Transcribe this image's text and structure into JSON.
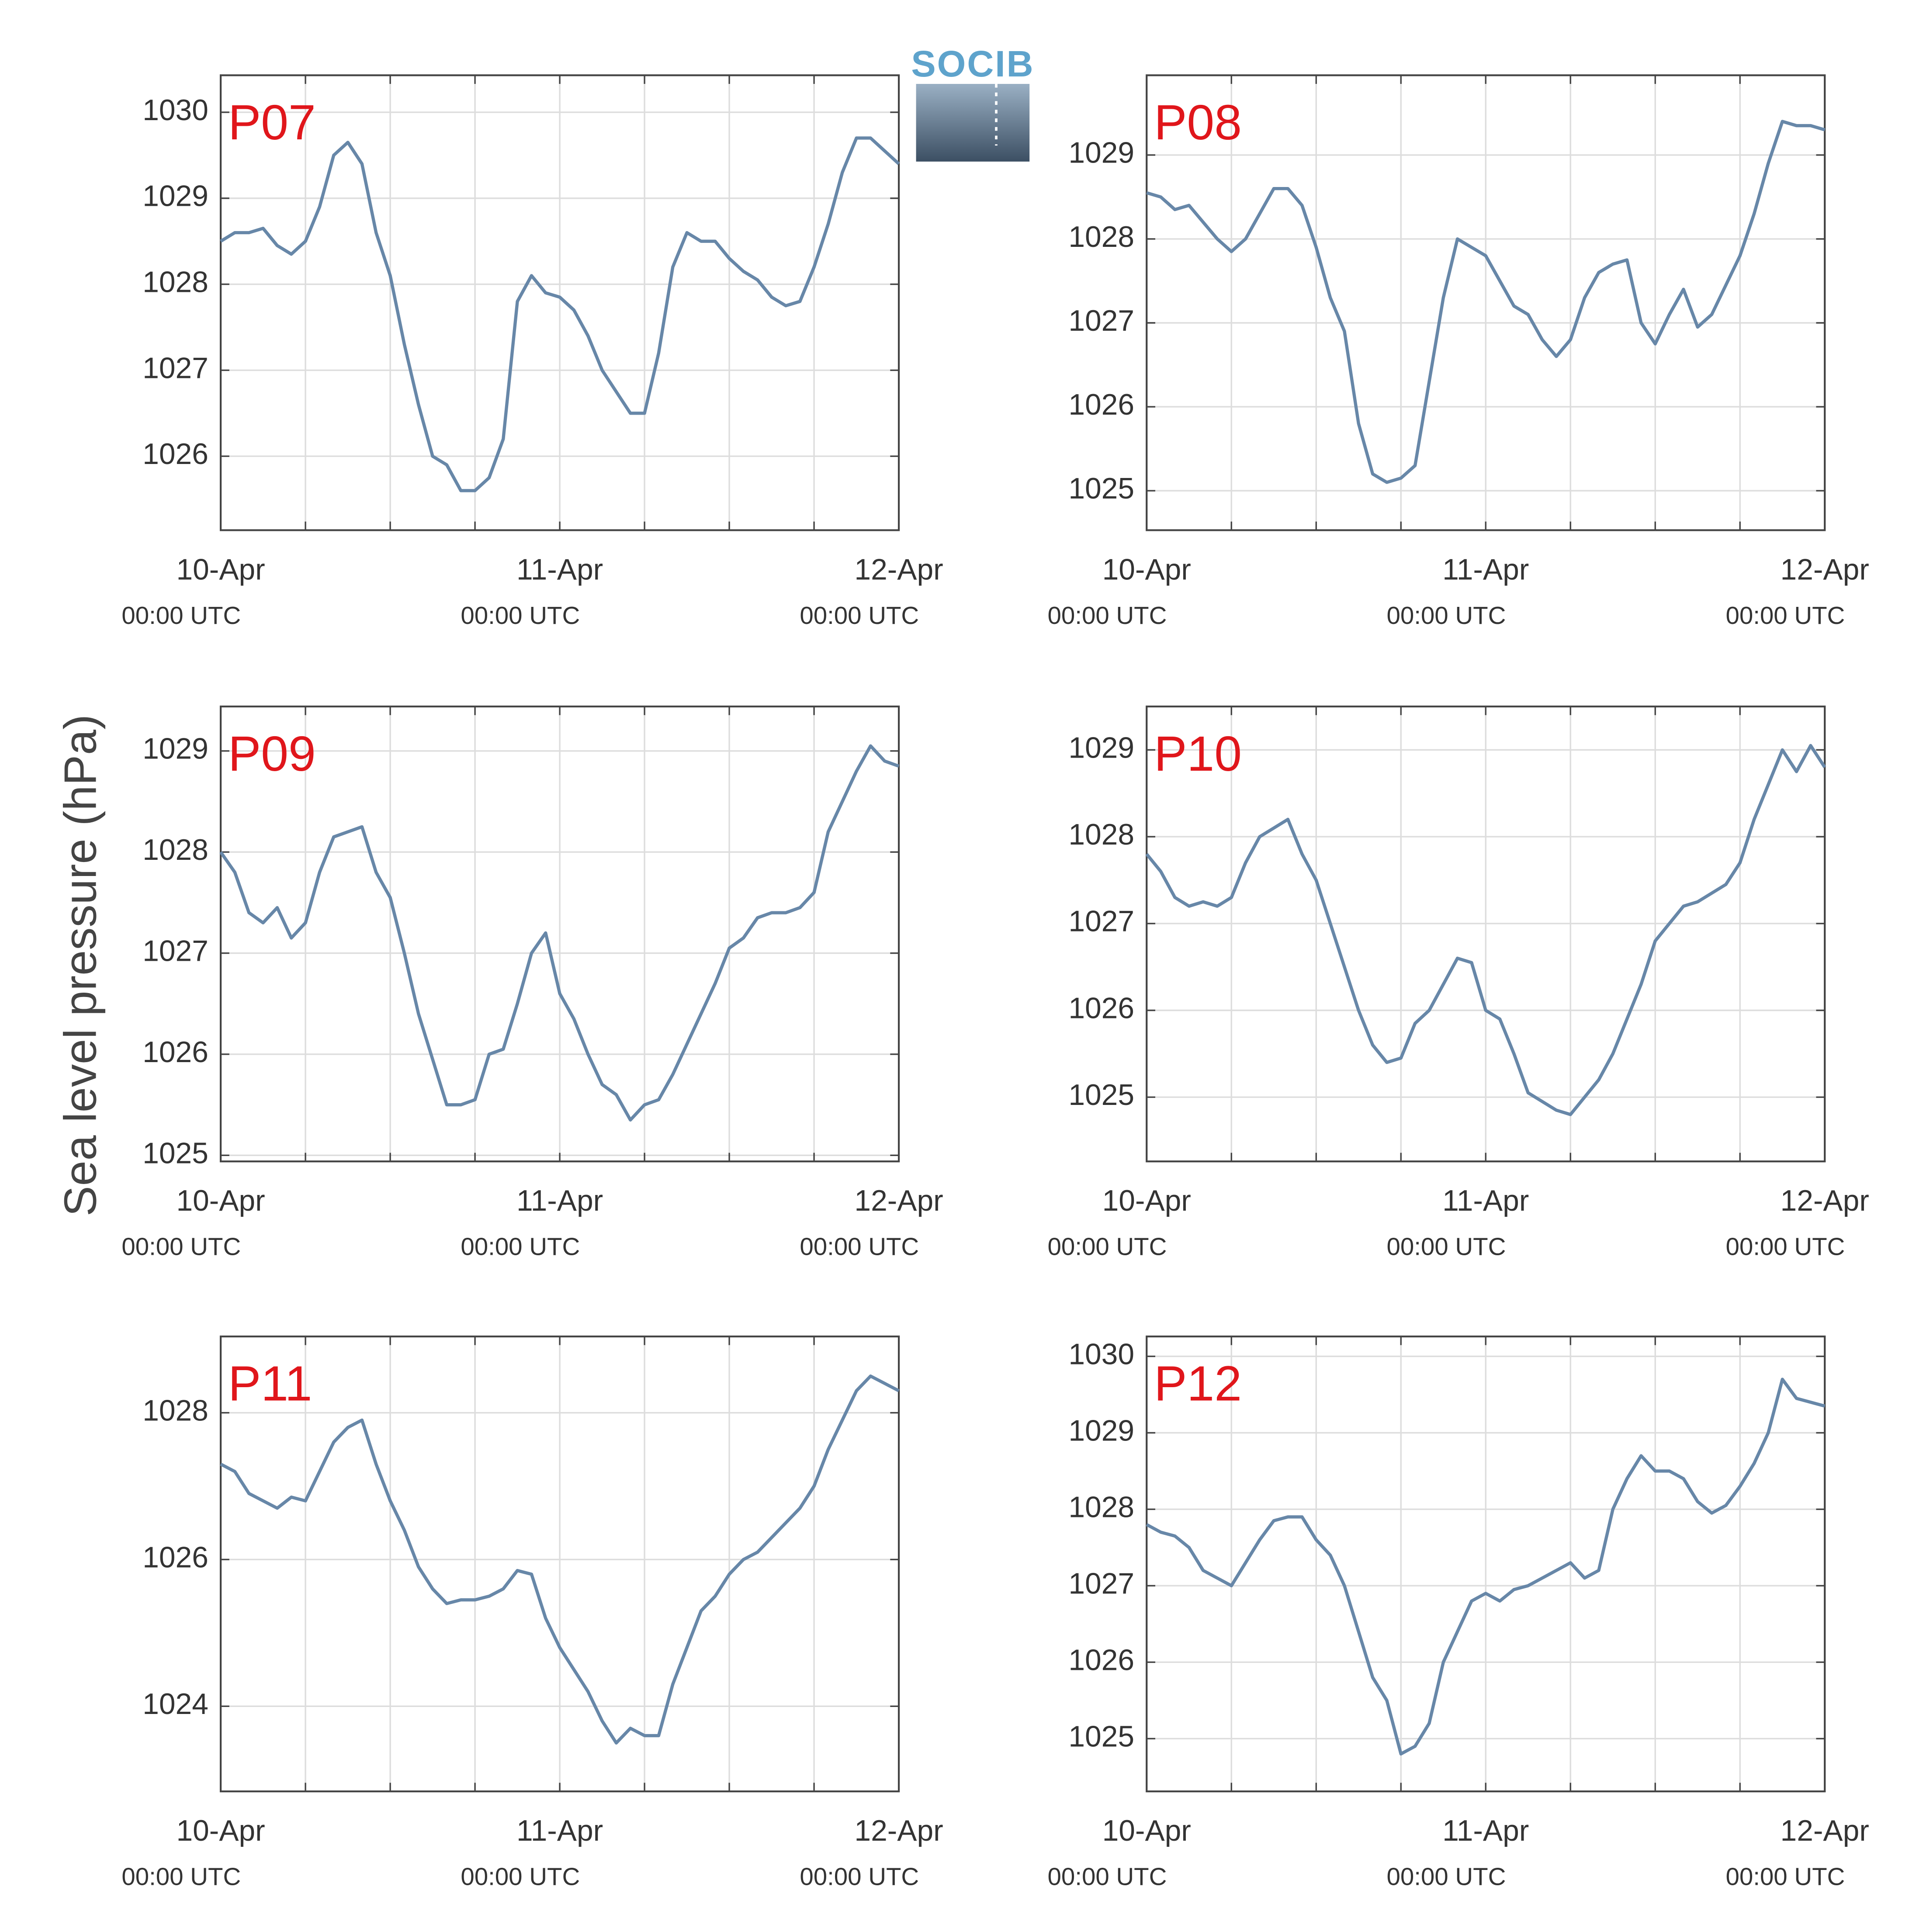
{
  "ylabel": "Sea level pressure (hPa)",
  "logo": "SOCIB",
  "chart_data": [
    {
      "type": "line",
      "title": "P07",
      "color": "#6787a8",
      "x": [
        0,
        1,
        2,
        3,
        4,
        5,
        6,
        7,
        8,
        9,
        10,
        11,
        12,
        13,
        14,
        15,
        16,
        17,
        18,
        19,
        20,
        21,
        22,
        23,
        24,
        25,
        26,
        27,
        28,
        29,
        30,
        31,
        32,
        33,
        34,
        35,
        36,
        37,
        38,
        39,
        40,
        41,
        42,
        43,
        44,
        45,
        46,
        47,
        48
      ],
      "values": [
        1028.5,
        1028.6,
        1028.6,
        1028.65,
        1028.45,
        1028.35,
        1028.5,
        1028.9,
        1029.5,
        1029.65,
        1029.4,
        1028.6,
        1028.1,
        1027.3,
        1026.6,
        1026.0,
        1025.9,
        1025.6,
        1025.6,
        1025.75,
        1026.2,
        1027.8,
        1028.1,
        1027.9,
        1027.85,
        1027.7,
        1027.4,
        1027.0,
        1026.75,
        1026.5,
        1026.5,
        1027.2,
        1028.2,
        1028.6,
        1028.5,
        1028.5,
        1028.3,
        1028.15,
        1028.05,
        1027.85,
        1027.75,
        1027.8,
        1028.2,
        1028.7,
        1029.3,
        1029.7,
        1029.7,
        1029.55,
        1029.4
      ],
      "xlim": [
        0,
        48
      ],
      "ylim": [
        1025.14,
        1030.43
      ],
      "yticks": [
        1026,
        1027,
        1028,
        1029,
        1030
      ],
      "xticks": [
        {
          "value": 0,
          "label": "10-Apr",
          "sublabel": "00:00 UTC"
        },
        {
          "value": 24,
          "label": "11-Apr",
          "sublabel": "00:00 UTC"
        },
        {
          "value": 48,
          "label": "12-Apr",
          "sublabel": "00:00 UTC"
        }
      ],
      "xminor": [
        6,
        12,
        18,
        30,
        36,
        42
      ],
      "grid": true
    },
    {
      "type": "line",
      "title": "P08",
      "color": "#6787a8",
      "x": [
        0,
        1,
        2,
        3,
        4,
        5,
        6,
        7,
        8,
        9,
        10,
        11,
        12,
        13,
        14,
        15,
        16,
        17,
        18,
        19,
        20,
        21,
        22,
        23,
        24,
        25,
        26,
        27,
        28,
        29,
        30,
        31,
        32,
        33,
        34,
        35,
        36,
        37,
        38,
        39,
        40,
        41,
        42,
        43,
        44,
        45,
        46,
        47,
        48
      ],
      "values": [
        1028.55,
        1028.5,
        1028.35,
        1028.4,
        1028.2,
        1028.0,
        1027.85,
        1028.0,
        1028.3,
        1028.6,
        1028.6,
        1028.4,
        1027.9,
        1027.3,
        1026.9,
        1025.8,
        1025.2,
        1025.1,
        1025.15,
        1025.3,
        1026.3,
        1027.3,
        1028.0,
        1027.9,
        1027.8,
        1027.5,
        1027.2,
        1027.1,
        1026.8,
        1026.6,
        1026.8,
        1027.3,
        1027.6,
        1027.7,
        1027.75,
        1027.0,
        1026.75,
        1027.1,
        1027.4,
        1026.95,
        1027.1,
        1027.45,
        1027.8,
        1028.3,
        1028.9,
        1029.4,
        1029.35,
        1029.35,
        1029.3
      ],
      "xlim": [
        0,
        48
      ],
      "ylim": [
        1024.53,
        1029.95
      ],
      "yticks": [
        1025,
        1026,
        1027,
        1028,
        1029
      ],
      "xticks": [
        {
          "value": 0,
          "label": "10-Apr",
          "sublabel": "00:00 UTC"
        },
        {
          "value": 24,
          "label": "11-Apr",
          "sublabel": "00:00 UTC"
        },
        {
          "value": 48,
          "label": "12-Apr",
          "sublabel": "00:00 UTC"
        }
      ],
      "xminor": [
        6,
        12,
        18,
        30,
        36,
        42
      ],
      "grid": true
    },
    {
      "type": "line",
      "title": "P09",
      "color": "#6787a8",
      "x": [
        0,
        1,
        2,
        3,
        4,
        5,
        6,
        7,
        8,
        9,
        10,
        11,
        12,
        13,
        14,
        15,
        16,
        17,
        18,
        19,
        20,
        21,
        22,
        23,
        24,
        25,
        26,
        27,
        28,
        29,
        30,
        31,
        32,
        33,
        34,
        35,
        36,
        37,
        38,
        39,
        40,
        41,
        42,
        43,
        44,
        45,
        46,
        47,
        48
      ],
      "values": [
        1028.0,
        1027.8,
        1027.4,
        1027.3,
        1027.45,
        1027.15,
        1027.3,
        1027.8,
        1028.15,
        1028.2,
        1028.25,
        1027.8,
        1027.55,
        1027.0,
        1026.4,
        1025.95,
        1025.5,
        1025.5,
        1025.55,
        1026.0,
        1026.05,
        1026.5,
        1027.0,
        1027.2,
        1026.6,
        1026.35,
        1026.0,
        1025.7,
        1025.6,
        1025.35,
        1025.5,
        1025.55,
        1025.8,
        1026.1,
        1026.4,
        1026.7,
        1027.05,
        1027.15,
        1027.35,
        1027.4,
        1027.4,
        1027.45,
        1027.6,
        1028.2,
        1028.5,
        1028.8,
        1029.05,
        1028.9,
        1028.85
      ],
      "xlim": [
        0,
        48
      ],
      "ylim": [
        1024.94,
        1029.44
      ],
      "yticks": [
        1025,
        1026,
        1027,
        1028,
        1029
      ],
      "xticks": [
        {
          "value": 0,
          "label": "10-Apr",
          "sublabel": "00:00 UTC"
        },
        {
          "value": 24,
          "label": "11-Apr",
          "sublabel": "00:00 UTC"
        },
        {
          "value": 48,
          "label": "12-Apr",
          "sublabel": "00:00 UTC"
        }
      ],
      "xminor": [
        6,
        12,
        18,
        30,
        36,
        42
      ],
      "grid": true
    },
    {
      "type": "line",
      "title": "P10",
      "color": "#6787a8",
      "x": [
        0,
        1,
        2,
        3,
        4,
        5,
        6,
        7,
        8,
        9,
        10,
        11,
        12,
        13,
        14,
        15,
        16,
        17,
        18,
        19,
        20,
        21,
        22,
        23,
        24,
        25,
        26,
        27,
        28,
        29,
        30,
        31,
        32,
        33,
        34,
        35,
        36,
        37,
        38,
        39,
        40,
        41,
        42,
        43,
        44,
        45,
        46,
        47,
        48
      ],
      "values": [
        1027.8,
        1027.6,
        1027.3,
        1027.2,
        1027.25,
        1027.2,
        1027.3,
        1027.7,
        1028.0,
        1028.1,
        1028.2,
        1027.8,
        1027.5,
        1027.0,
        1026.5,
        1026.0,
        1025.6,
        1025.4,
        1025.45,
        1025.85,
        1026.0,
        1026.3,
        1026.6,
        1026.55,
        1026.0,
        1025.9,
        1025.5,
        1025.05,
        1024.95,
        1024.85,
        1024.8,
        1025.0,
        1025.2,
        1025.5,
        1025.9,
        1026.3,
        1026.8,
        1027.0,
        1027.2,
        1027.25,
        1027.35,
        1027.45,
        1027.7,
        1028.2,
        1028.6,
        1029.0,
        1028.75,
        1029.05,
        1028.8
      ],
      "xlim": [
        0,
        48
      ],
      "ylim": [
        1024.26,
        1029.5
      ],
      "yticks": [
        1025,
        1026,
        1027,
        1028,
        1029
      ],
      "xticks": [
        {
          "value": 0,
          "label": "10-Apr",
          "sublabel": "00:00 UTC"
        },
        {
          "value": 24,
          "label": "11-Apr",
          "sublabel": "00:00 UTC"
        },
        {
          "value": 48,
          "label": "12-Apr",
          "sublabel": "00:00 UTC"
        }
      ],
      "xminor": [
        6,
        12,
        18,
        30,
        36,
        42
      ],
      "grid": true
    },
    {
      "type": "line",
      "title": "P11",
      "color": "#6787a8",
      "x": [
        0,
        1,
        2,
        3,
        4,
        5,
        6,
        7,
        8,
        9,
        10,
        11,
        12,
        13,
        14,
        15,
        16,
        17,
        18,
        19,
        20,
        21,
        22,
        23,
        24,
        25,
        26,
        27,
        28,
        29,
        30,
        31,
        32,
        33,
        34,
        35,
        36,
        37,
        38,
        39,
        40,
        41,
        42,
        43,
        44,
        45,
        46,
        47,
        48
      ],
      "values": [
        1027.3,
        1027.2,
        1026.9,
        1026.8,
        1026.7,
        1026.85,
        1026.8,
        1027.2,
        1027.6,
        1027.8,
        1027.9,
        1027.3,
        1026.8,
        1026.4,
        1025.9,
        1025.6,
        1025.4,
        1025.45,
        1025.45,
        1025.5,
        1025.6,
        1025.85,
        1025.8,
        1025.2,
        1024.8,
        1024.5,
        1024.2,
        1023.8,
        1023.5,
        1023.7,
        1023.6,
        1023.6,
        1024.3,
        1024.8,
        1025.3,
        1025.5,
        1025.8,
        1026.0,
        1026.1,
        1026.3,
        1026.5,
        1026.7,
        1027.0,
        1027.5,
        1027.9,
        1028.3,
        1028.5,
        1028.4,
        1028.3
      ],
      "xlim": [
        0,
        48
      ],
      "ylim": [
        1022.84,
        1029.04
      ],
      "yticks": [
        1024,
        1026,
        1028
      ],
      "xticks": [
        {
          "value": 0,
          "label": "10-Apr",
          "sublabel": "00:00 UTC"
        },
        {
          "value": 24,
          "label": "11-Apr",
          "sublabel": "00:00 UTC"
        },
        {
          "value": 48,
          "label": "12-Apr",
          "sublabel": "00:00 UTC"
        }
      ],
      "xminor": [
        6,
        12,
        18,
        30,
        36,
        42
      ],
      "grid": true
    },
    {
      "type": "line",
      "title": "P12",
      "color": "#6787a8",
      "x": [
        0,
        1,
        2,
        3,
        4,
        5,
        6,
        7,
        8,
        9,
        10,
        11,
        12,
        13,
        14,
        15,
        16,
        17,
        18,
        19,
        20,
        21,
        22,
        23,
        24,
        25,
        26,
        27,
        28,
        29,
        30,
        31,
        32,
        33,
        34,
        35,
        36,
        37,
        38,
        39,
        40,
        41,
        42,
        43,
        44,
        45,
        46,
        47,
        48
      ],
      "values": [
        1027.8,
        1027.7,
        1027.65,
        1027.5,
        1027.2,
        1027.1,
        1027.0,
        1027.3,
        1027.6,
        1027.85,
        1027.9,
        1027.9,
        1027.6,
        1027.4,
        1027.0,
        1026.4,
        1025.8,
        1025.5,
        1024.8,
        1024.9,
        1025.2,
        1026.0,
        1026.4,
        1026.8,
        1026.9,
        1026.8,
        1026.95,
        1027.0,
        1027.1,
        1027.2,
        1027.3,
        1027.1,
        1027.2,
        1028.0,
        1028.4,
        1028.7,
        1028.5,
        1028.5,
        1028.4,
        1028.1,
        1027.95,
        1028.05,
        1028.3,
        1028.6,
        1029.0,
        1029.7,
        1029.45,
        1029.4,
        1029.35
      ],
      "xlim": [
        0,
        48
      ],
      "ylim": [
        1024.31,
        1030.26
      ],
      "yticks": [
        1025,
        1026,
        1027,
        1028,
        1029,
        1030
      ],
      "xticks": [
        {
          "value": 0,
          "label": "10-Apr",
          "sublabel": "00:00 UTC"
        },
        {
          "value": 24,
          "label": "11-Apr",
          "sublabel": "00:00 UTC"
        },
        {
          "value": 48,
          "label": "12-Apr",
          "sublabel": "00:00 UTC"
        }
      ],
      "xminor": [
        6,
        12,
        18,
        30,
        36,
        42
      ],
      "grid": true
    }
  ]
}
